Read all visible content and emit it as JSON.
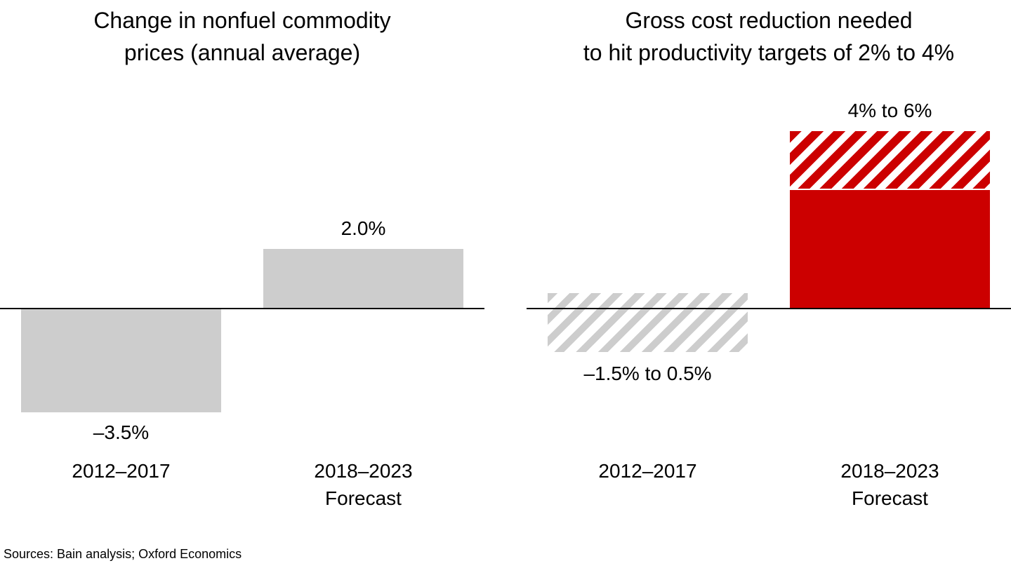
{
  "page": {
    "background": "#FFFFFF"
  },
  "colors": {
    "bar_gray": "#CDCDCD",
    "bar_red": "#CC0000",
    "axis_line": "#000000",
    "text": "#000000"
  },
  "source_note": "Sources: Bain analysis; Oxford Economics",
  "chart_data": [
    {
      "type": "bar",
      "title": "Change in nonfuel commodity prices (annual average)",
      "title_lines": [
        "Change in nonfuel commodity",
        "prices (annual average)"
      ],
      "unit": "percent",
      "categories": [
        "2012–2017",
        "2018–2023 Forecast"
      ],
      "values": [
        -3.5,
        2.0
      ],
      "ylim": [
        -4.5,
        7.5
      ],
      "grid": false,
      "legend": false,
      "zero_baseline": true,
      "bars": [
        {
          "category_lines": [
            "2012–2017"
          ],
          "label": "–3.5%",
          "label_side": "below",
          "segments": [
            {
              "from": 0,
              "to": -3.5,
              "fill": "solid-gray"
            }
          ]
        },
        {
          "category_lines": [
            "2018–2023",
            "Forecast"
          ],
          "label": "2.0%",
          "label_side": "above",
          "segments": [
            {
              "from": 2.0,
              "to": 0,
              "fill": "solid-gray"
            }
          ]
        }
      ]
    },
    {
      "type": "bar",
      "title": "Gross cost reduction needed to hit productivity targets of 2% to 4%",
      "title_lines": [
        "Gross cost reduction needed",
        "to hit productivity targets of 2% to 4%"
      ],
      "unit": "percent",
      "categories": [
        "2012–2017",
        "2018–2023 Forecast"
      ],
      "values_range": [
        [
          -1.5,
          0.5
        ],
        [
          4.0,
          6.0
        ]
      ],
      "ylim": [
        -4.5,
        7.5
      ],
      "grid": false,
      "legend": false,
      "zero_baseline": true,
      "bars": [
        {
          "category_lines": [
            "2012–2017"
          ],
          "label": "–1.5% to 0.5%",
          "label_side": "below",
          "segments": [
            {
              "from": 0.5,
              "to": -1.5,
              "fill": "hatch-gray"
            }
          ]
        },
        {
          "category_lines": [
            "2018–2023",
            "Forecast"
          ],
          "label": "4% to 6%",
          "label_side": "above",
          "segments": [
            {
              "from": 6.0,
              "to": 4.0,
              "fill": "hatch-red"
            },
            {
              "from": 4.0,
              "to": 0,
              "fill": "solid-red"
            }
          ]
        }
      ]
    }
  ]
}
